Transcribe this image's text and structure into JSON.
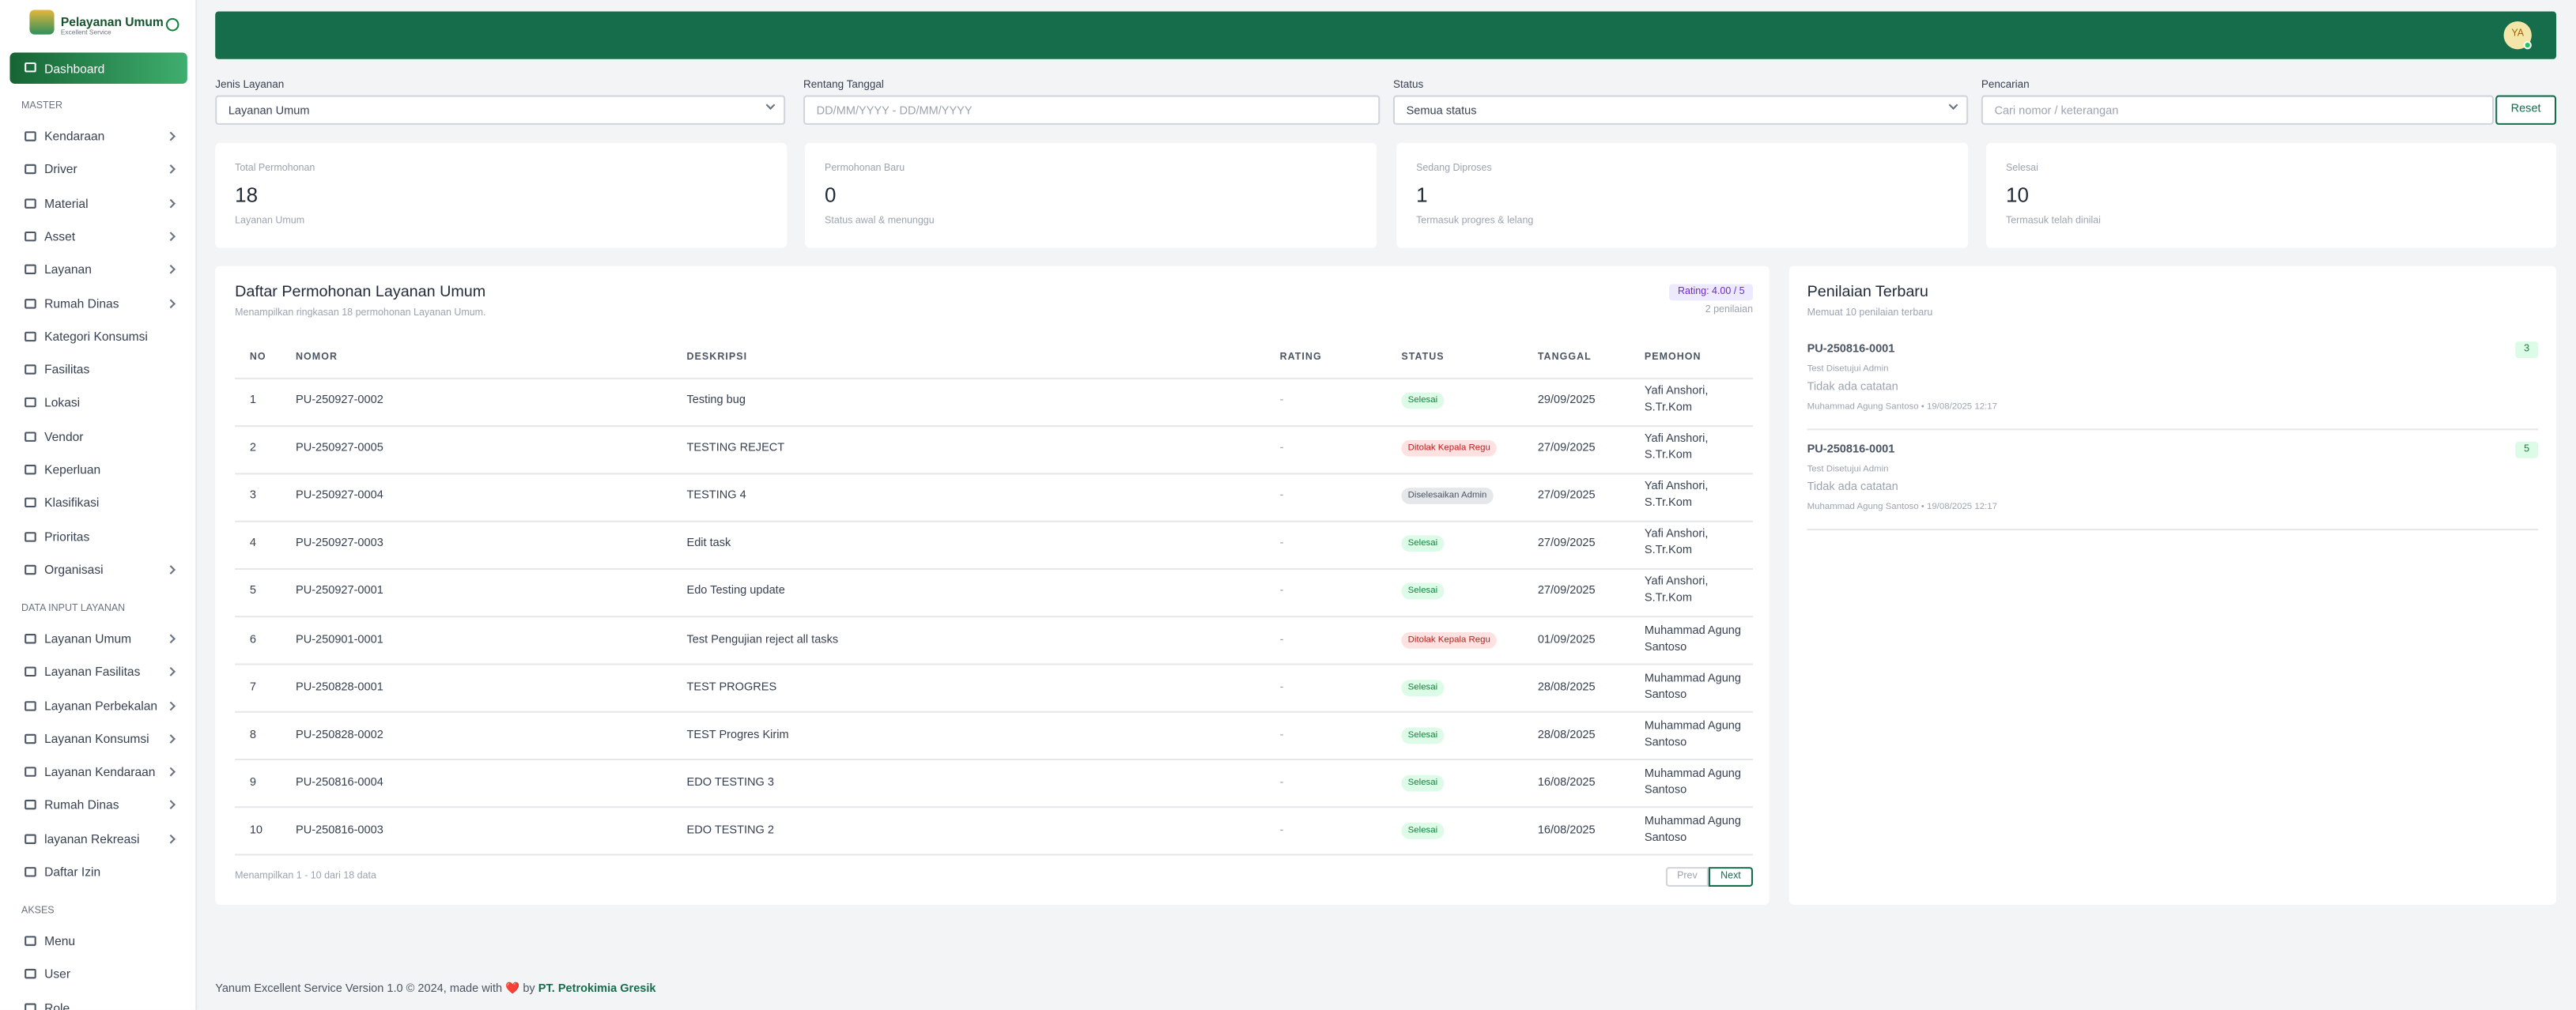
{
  "sidebar": {
    "brand": "Pelayanan Umum",
    "tagline": "Excellent Service",
    "active": "Dashboard",
    "sections": [
      {
        "title": "MASTER",
        "items": [
          {
            "label": "Kendaraan",
            "sub": true
          },
          {
            "label": "Driver",
            "sub": true
          },
          {
            "label": "Material",
            "sub": true
          },
          {
            "label": "Asset",
            "sub": true
          },
          {
            "label": "Layanan",
            "sub": true
          },
          {
            "label": "Rumah Dinas",
            "sub": true
          },
          {
            "label": "Kategori Konsumsi",
            "sub": false
          },
          {
            "label": "Fasilitas",
            "sub": false
          },
          {
            "label": "Lokasi",
            "sub": false
          },
          {
            "label": "Vendor",
            "sub": false
          },
          {
            "label": "Keperluan",
            "sub": false
          },
          {
            "label": "Klasifikasi",
            "sub": false
          },
          {
            "label": "Prioritas",
            "sub": false
          },
          {
            "label": "Organisasi",
            "sub": true
          }
        ]
      },
      {
        "title": "DATA INPUT LAYANAN",
        "items": [
          {
            "label": "Layanan Umum",
            "sub": true
          },
          {
            "label": "Layanan Fasilitas",
            "sub": true
          },
          {
            "label": "Layanan Perbekalan",
            "sub": true
          },
          {
            "label": "Layanan Konsumsi",
            "sub": true
          },
          {
            "label": "Layanan Kendaraan",
            "sub": true
          },
          {
            "label": "Rumah Dinas",
            "sub": true
          },
          {
            "label": "layanan Rekreasi",
            "sub": true
          },
          {
            "label": "Daftar Izin",
            "sub": false
          }
        ]
      },
      {
        "title": "AKSES",
        "items": [
          {
            "label": "Menu",
            "sub": false
          },
          {
            "label": "User",
            "sub": false
          },
          {
            "label": "Role",
            "sub": false
          }
        ]
      }
    ]
  },
  "header": {
    "avatar": "YA"
  },
  "filters": [
    {
      "label": "Jenis Layanan",
      "value": "Layanan Umum",
      "select": true
    },
    {
      "label": "Rentang Tanggal",
      "placeholder": "DD/MM/YYYY - DD/MM/YYYY",
      "select": false
    },
    {
      "label": "Status",
      "value": "Semua status",
      "select": true
    },
    {
      "label": "Pencarian",
      "placeholder": "Cari nomor / keterangan",
      "select": false
    }
  ],
  "reset": "Reset",
  "stats": [
    {
      "label": "Total Permohonan",
      "value": 18,
      "note": "Layanan Umum"
    },
    {
      "label": "Permohonan Baru",
      "value": 0,
      "note": "Status awal & menunggu"
    },
    {
      "label": "Sedang Diproses",
      "value": 1,
      "note": "Termasuk progres & lelang"
    },
    {
      "label": "Selesai",
      "value": 10,
      "note": "Termasuk telah dinilai"
    }
  ],
  "table": {
    "title": "Daftar Permohonan Layanan Umum",
    "subtitle": "Menampilkan ringkasan 18 permohonan Layanan Umum.",
    "rating_badge": "Rating: 4.00 / 5",
    "rating_count": "2 penilaian",
    "columns": [
      "NO",
      "NOMOR",
      "DESKRIPSI",
      "RATING",
      "STATUS",
      "TANGGAL",
      "PEMOHON"
    ],
    "rows": [
      {
        "no": 1,
        "nomor": "PU-250927-0002",
        "deskripsi": "Testing bug",
        "rating": "-",
        "status": "Selesai",
        "tone": "green",
        "tanggal": "29/09/2025",
        "pemohon": "Yafi Anshori, S.Tr.Kom"
      },
      {
        "no": 2,
        "nomor": "PU-250927-0005",
        "deskripsi": "TESTING REJECT",
        "rating": "-",
        "status": "Ditolak Kepala Regu",
        "tone": "red",
        "tanggal": "27/09/2025",
        "pemohon": "Yafi Anshori, S.Tr.Kom"
      },
      {
        "no": 3,
        "nomor": "PU-250927-0004",
        "deskripsi": "TESTING 4",
        "rating": "-",
        "status": "Diselesaikan Admin",
        "tone": "gray",
        "tanggal": "27/09/2025",
        "pemohon": "Yafi Anshori, S.Tr.Kom"
      },
      {
        "no": 4,
        "nomor": "PU-250927-0003",
        "deskripsi": "Edit task",
        "rating": "-",
        "status": "Selesai",
        "tone": "green",
        "tanggal": "27/09/2025",
        "pemohon": "Yafi Anshori, S.Tr.Kom"
      },
      {
        "no": 5,
        "nomor": "PU-250927-0001",
        "deskripsi": "Edo Testing update",
        "rating": "-",
        "status": "Selesai",
        "tone": "green",
        "tanggal": "27/09/2025",
        "pemohon": "Yafi Anshori, S.Tr.Kom"
      },
      {
        "no": 6,
        "nomor": "PU-250901-0001",
        "deskripsi": "Test Pengujian reject all tasks",
        "rating": "-",
        "status": "Ditolak Kepala Regu",
        "tone": "red",
        "tanggal": "01/09/2025",
        "pemohon": "Muhammad Agung Santoso"
      },
      {
        "no": 7,
        "nomor": "PU-250828-0001",
        "deskripsi": "TEST PROGRES",
        "rating": "-",
        "status": "Selesai",
        "tone": "green",
        "tanggal": "28/08/2025",
        "pemohon": "Muhammad Agung Santoso"
      },
      {
        "no": 8,
        "nomor": "PU-250828-0002",
        "deskripsi": "TEST Progres Kirim",
        "rating": "-",
        "status": "Selesai",
        "tone": "green",
        "tanggal": "28/08/2025",
        "pemohon": "Muhammad Agung Santoso"
      },
      {
        "no": 9,
        "nomor": "PU-250816-0004",
        "deskripsi": "EDO TESTING 3",
        "rating": "-",
        "status": "Selesai",
        "tone": "green",
        "tanggal": "16/08/2025",
        "pemohon": "Muhammad Agung Santoso"
      },
      {
        "no": 10,
        "nomor": "PU-250816-0003",
        "deskripsi": "EDO TESTING 2",
        "rating": "-",
        "status": "Selesai",
        "tone": "green",
        "tanggal": "16/08/2025",
        "pemohon": "Muhammad Agung Santoso"
      }
    ],
    "summary": "Menampilkan 1 - 10 dari 18 data",
    "prev": "Prev",
    "next": "Next"
  },
  "ratings": {
    "title": "Penilaian Terbaru",
    "subtitle": "Memuat 10 penilaian terbaru",
    "items": [
      {
        "nomor": "PU-250816-0001",
        "status": "Test Disetujui Admin",
        "note": "Tidak ada catatan",
        "meta": "Muhammad Agung Santoso • 19/08/2025 12:17",
        "score": 3
      },
      {
        "nomor": "PU-250816-0001",
        "status": "Test Disetujui Admin",
        "note": "Tidak ada catatan",
        "meta": "Muhammad Agung Santoso • 19/08/2025 12:17",
        "score": 5
      }
    ]
  },
  "footer": {
    "text": "Yanum Excellent Service Version 1.0 © 2024, made with ❤️ by",
    "link": "PT. Petrokimia Gresik"
  }
}
